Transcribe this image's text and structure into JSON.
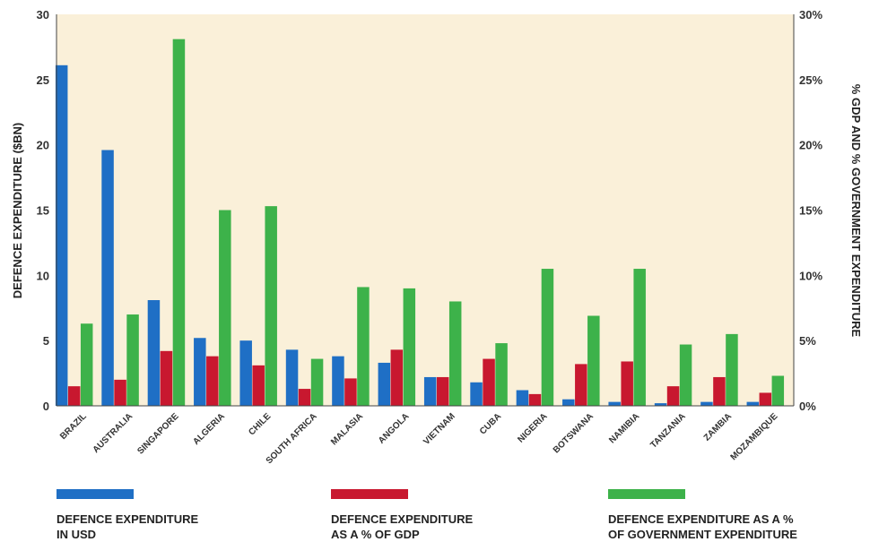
{
  "chart_data": {
    "type": "bar",
    "categories": [
      "BRAZIL",
      "AUSTRALIA",
      "SINGAPORE",
      "ALGERIA",
      "CHILE",
      "SOUTH AFRICA",
      "MALASIA",
      "ANGOLA",
      "VIETNAM",
      "CUBA",
      "NIGERIA",
      "BOTSWANA",
      "NAMIBIA",
      "TANZANIA",
      "ZAMBIA",
      "MOZAMBIQUE"
    ],
    "series": [
      {
        "name": "DEFENCE EXPENDITURE\nIN USD",
        "axis": "left",
        "color": "#1f6fc5",
        "values": [
          26.1,
          19.6,
          8.1,
          5.2,
          5.0,
          4.3,
          3.8,
          3.3,
          2.2,
          1.8,
          1.2,
          0.5,
          0.3,
          0.2,
          0.3,
          0.3
        ]
      },
      {
        "name": "DEFENCE EXPENDITURE\nAS A % OF GDP",
        "axis": "right",
        "color": "#c8182f",
        "values": [
          1.5,
          2.0,
          4.2,
          3.8,
          3.1,
          1.3,
          2.1,
          4.3,
          2.2,
          3.6,
          0.9,
          3.2,
          3.4,
          1.5,
          2.2,
          1.0
        ]
      },
      {
        "name": "DEFENCE EXPENDITURE AS A %\nOF GOVERNMENT EXPENDITURE",
        "axis": "right",
        "color": "#3db24a",
        "values": [
          6.3,
          7.0,
          28.1,
          15.0,
          15.3,
          3.6,
          9.1,
          9.0,
          8.0,
          4.8,
          10.5,
          6.9,
          10.5,
          4.7,
          5.5,
          2.3
        ]
      }
    ],
    "ylabel": "DEFENCE EXPENDITURE ($BN)",
    "y2label": "% GDP AND % GOVERNMENT EXPENDITURE",
    "ylim": [
      0,
      30
    ],
    "y2lim": [
      0,
      30
    ],
    "yticks": [
      "0",
      "5",
      "10",
      "15",
      "20",
      "25",
      "30"
    ],
    "y2ticks": [
      "0%",
      "5%",
      "10%",
      "15%",
      "20%",
      "25%",
      "30%"
    ],
    "grid": false,
    "legend_position": "bottom",
    "plot_background": "#faf0d9"
  }
}
